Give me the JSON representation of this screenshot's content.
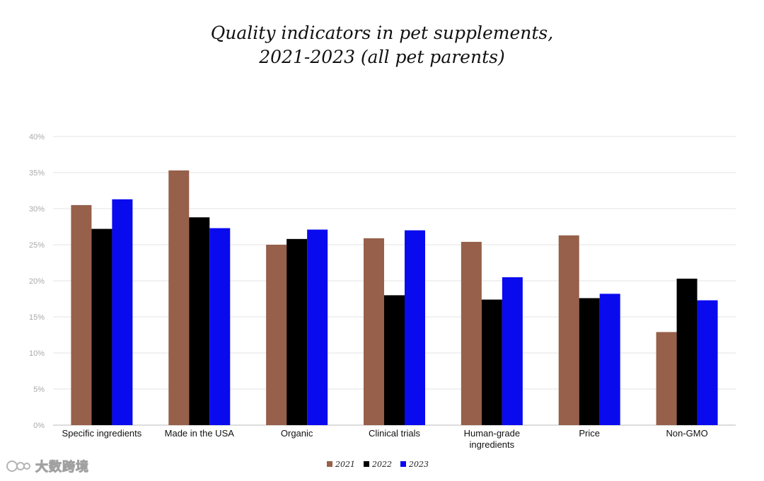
{
  "chart_data": {
    "type": "bar",
    "title": [
      "Quality indicators in pet supplements,",
      "2021-2023 (all pet parents)"
    ],
    "xlabel": "",
    "ylabel": "",
    "ylim": [
      0,
      40
    ],
    "yticks": [
      "0%",
      "5%",
      "10%",
      "15%",
      "20%",
      "25%",
      "30%",
      "35%",
      "40%"
    ],
    "grid": true,
    "legend_position": "bottom-center",
    "categories": [
      [
        "Specific ingredients"
      ],
      [
        "Made in the USA"
      ],
      [
        "Organic"
      ],
      [
        "Clinical trials"
      ],
      [
        "Human-grade",
        "ingredients"
      ],
      [
        "Price"
      ],
      [
        "Non-GMO"
      ]
    ],
    "series": [
      {
        "name": "2021",
        "color": "#96604a",
        "values": [
          30.5,
          35.3,
          25.0,
          25.9,
          25.4,
          26.3,
          12.9
        ]
      },
      {
        "name": "2022",
        "color": "#000000",
        "values": [
          27.2,
          28.8,
          25.8,
          18.0,
          17.4,
          17.6,
          20.3
        ]
      },
      {
        "name": "2023",
        "color": "#0a0aef",
        "values": [
          31.3,
          27.3,
          27.1,
          27.0,
          20.5,
          18.2,
          17.3
        ]
      }
    ]
  },
  "watermark": {
    "text": "大数跨境"
  }
}
